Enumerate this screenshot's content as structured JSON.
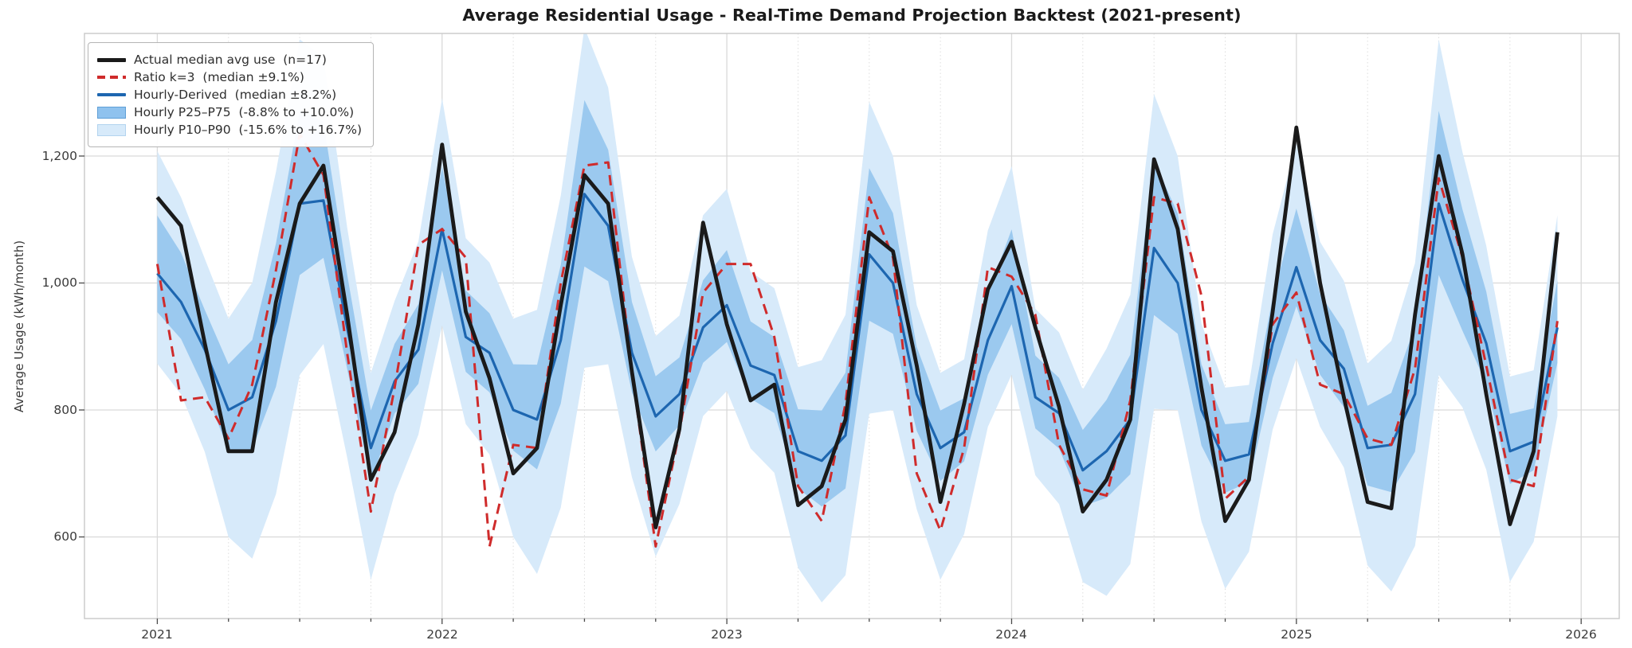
{
  "title": "Average Residential Usage - Real-Time Demand Projection Backtest (2021-present)",
  "axes": {
    "x": {
      "ticks": [
        "2021",
        "2022",
        "2023",
        "2024",
        "2025",
        "2026"
      ]
    },
    "y": {
      "label": "Average Usage (kWh/month)",
      "ticks": [
        "600",
        "800",
        "1,000",
        "1,200"
      ]
    }
  },
  "legend": {
    "items": [
      {
        "label": "Actual median avg use  (n=17)",
        "swatch": "line",
        "color": "#1a1a1a"
      },
      {
        "label": "Ratio k=3  (median ±9.1%)",
        "swatch": "dashed",
        "color": "#cf2b2b"
      },
      {
        "label": "Hourly-Derived  (median ±8.2%)",
        "swatch": "line",
        "color": "#1d66b0"
      },
      {
        "label": "Hourly P25–P75  (-8.8% to +10.0%)",
        "swatch": "patch",
        "color": "#8fc2ee",
        "edge": "#5f9fd6"
      },
      {
        "label": "Hourly P10–P90  (-15.6% to +16.7%)",
        "swatch": "patch",
        "color": "#d7eafa",
        "edge": "#b3d4ef"
      }
    ]
  },
  "colors": {
    "actual": "#1a1a1a",
    "ratio": "#cf2b2b",
    "hourly": "#1d66b0",
    "band_p25_p75": "#9bc9ef",
    "band_p10_p90": "#d7eafa",
    "grid_major": "#d9d9d9",
    "grid_minor": "#dedede",
    "spine": "#c9c9c9",
    "tick": "#4a4a4a",
    "tick_label": "#3a3a3a"
  },
  "chart_data": {
    "type": "line",
    "title": "Average Residential Usage - Real-Time Demand Projection Backtest (2021-present)",
    "xlabel": "",
    "ylabel": "Average Usage (kWh/month)",
    "x_freq": "monthly",
    "x_range": [
      "2021-01",
      "2025-12"
    ],
    "xtick_years": [
      2021,
      2022,
      2023,
      2024,
      2025,
      2026
    ],
    "ytick_values": [
      600,
      800,
      1000,
      1200
    ],
    "grid": true,
    "legend_position": "upper left",
    "months": [
      "2021-01",
      "2021-02",
      "2021-03",
      "2021-04",
      "2021-05",
      "2021-06",
      "2021-07",
      "2021-08",
      "2021-09",
      "2021-10",
      "2021-11",
      "2021-12",
      "2022-01",
      "2022-02",
      "2022-03",
      "2022-04",
      "2022-05",
      "2022-06",
      "2022-07",
      "2022-08",
      "2022-09",
      "2022-10",
      "2022-11",
      "2022-12",
      "2023-01",
      "2023-02",
      "2023-03",
      "2023-04",
      "2023-05",
      "2023-06",
      "2023-07",
      "2023-08",
      "2023-09",
      "2023-10",
      "2023-11",
      "2023-12",
      "2024-01",
      "2024-02",
      "2024-03",
      "2024-04",
      "2024-05",
      "2024-06",
      "2024-07",
      "2024-08",
      "2024-09",
      "2024-10",
      "2024-11",
      "2024-12",
      "2025-01",
      "2025-02",
      "2025-03",
      "2025-04",
      "2025-05",
      "2025-06",
      "2025-07",
      "2025-08",
      "2025-09",
      "2025-10",
      "2025-11",
      "2025-12"
    ],
    "series": [
      {
        "name": "Actual median avg use  (n=17)",
        "style": "solid",
        "color": "#1a1a1a",
        "linewidth": 4.8,
        "values": [
          1135,
          1090,
          905,
          735,
          735,
          970,
          1125,
          1185,
          950,
          690,
          765,
          935,
          1218,
          955,
          850,
          700,
          740,
          965,
          1170,
          1125,
          860,
          615,
          770,
          1095,
          935,
          815,
          840,
          650,
          680,
          785,
          1080,
          1050,
          870,
          655,
          810,
          990,
          1065,
          930,
          805,
          640,
          690,
          785,
          1195,
          1085,
          835,
          625,
          690,
          955,
          1245,
          1000,
          820,
          655,
          645,
          950,
          1200,
          1045,
          825,
          620,
          735,
          1080
        ]
      },
      {
        "name": "Ratio k=3  (median ±9.1%)",
        "style": "dashed",
        "color": "#cf2b2b",
        "linewidth": 3,
        "values": [
          1030,
          815,
          820,
          755,
          840,
          1020,
          1235,
          1170,
          890,
          640,
          835,
          1060,
          1085,
          1040,
          585,
          745,
          740,
          1000,
          1185,
          1190,
          860,
          585,
          765,
          985,
          1030,
          1030,
          915,
          680,
          625,
          810,
          1135,
          1040,
          700,
          610,
          740,
          1025,
          1010,
          950,
          745,
          675,
          665,
          815,
          1135,
          1125,
          980,
          660,
          695,
          935,
          985,
          840,
          825,
          755,
          745,
          865,
          1165,
          1040,
          870,
          690,
          680,
          940
        ]
      },
      {
        "name": "Hourly-Derived  (median ±8.2%)",
        "style": "solid",
        "color": "#1d66b0",
        "linewidth": 3.2,
        "values": [
          1015,
          970,
          895,
          800,
          820,
          940,
          1125,
          1130,
          930,
          740,
          845,
          895,
          1085,
          915,
          890,
          800,
          785,
          910,
          1140,
          1090,
          890,
          790,
          825,
          930,
          965,
          870,
          855,
          735,
          720,
          760,
          1045,
          1000,
          825,
          740,
          765,
          910,
          995,
          820,
          795,
          705,
          735,
          785,
          1055,
          1000,
          800,
          720,
          730,
          905,
          1025,
          910,
          865,
          740,
          745,
          825,
          1125,
          1005,
          905,
          735,
          750,
          930
        ]
      }
    ],
    "bands": [
      {
        "name": "Hourly P25–P75  (-8.8% to +10.0%)",
        "base_series": "Hourly-Derived",
        "median_offset_pct": [
          -8.8,
          10.0
        ],
        "fill": "#9bc9ef",
        "upper_factor_by_calendar_month": [
          1.09,
          1.08,
          1.07,
          1.09,
          1.11,
          1.13,
          1.13,
          1.11,
          1.09,
          1.08,
          1.07,
          1.08
        ],
        "lower_factor_by_calendar_month": [
          0.94,
          0.94,
          0.93,
          0.92,
          0.9,
          0.89,
          0.9,
          0.92,
          0.93,
          0.93,
          0.94,
          0.94
        ]
      },
      {
        "name": "Hourly P10–P90  (-15.6% to +16.7%)",
        "base_series": "Hourly-Derived",
        "median_offset_pct": [
          -15.6,
          16.7
        ],
        "fill": "#d7eafa",
        "upper_factor_by_calendar_month": [
          1.19,
          1.17,
          1.16,
          1.18,
          1.22,
          1.25,
          1.23,
          1.2,
          1.17,
          1.16,
          1.15,
          1.19
        ],
        "lower_factor_by_calendar_month": [
          0.86,
          0.85,
          0.82,
          0.75,
          0.69,
          0.71,
          0.76,
          0.8,
          0.78,
          0.72,
          0.79,
          0.85
        ]
      }
    ]
  }
}
